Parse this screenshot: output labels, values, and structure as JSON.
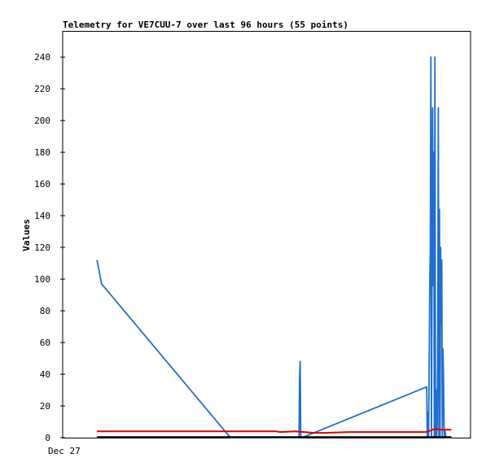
{
  "chart_data": {
    "type": "line",
    "title": "Telemetry for VE7CUU-7 over last 96 hours (55 points)",
    "ylabel": "Values",
    "xlabel": "",
    "x_tick_labels": [
      "Dec 27"
    ],
    "y_tick_labels": [
      "0",
      "20",
      "40",
      "60",
      "80",
      "100",
      "120",
      "140",
      "160",
      "180",
      "200",
      "220",
      "240"
    ],
    "ylim": [
      0,
      256
    ],
    "grid": false,
    "legend": "none",
    "colors": {
      "blue": "#1f6fcf",
      "red": "#dd0000",
      "black": "#000000",
      "axis": "#000000",
      "background": "#ffffff"
    },
    "series": [
      {
        "color": "#1f6fcf",
        "x": [
          0.0,
          1.2,
          35.0,
          35.3,
          35.6,
          53.0,
          53.15,
          53.3,
          53.45,
          53.6,
          53.8,
          86.5,
          86.65,
          86.8,
          87.0,
          87.15,
          87.3,
          87.45,
          87.6,
          87.75,
          87.9,
          88.05,
          88.2,
          88.35,
          88.5,
          88.65,
          88.8,
          88.95,
          89.1,
          89.25,
          89.4,
          89.55,
          89.7,
          89.85,
          90.0,
          90.15,
          90.3,
          90.45,
          90.6,
          90.75,
          90.9,
          91.05,
          91.2,
          91.35,
          91.5,
          91.65,
          91.8,
          91.95,
          92.1,
          92.25,
          92.4,
          92.55,
          92.7,
          92.85,
          93.0
        ],
        "y": [
          112,
          97,
          0,
          0,
          0,
          0,
          37,
          48,
          2,
          0,
          0,
          32,
          0,
          16,
          0,
          48,
          96,
          120,
          240,
          0,
          112,
          208,
          96,
          180,
          0,
          240,
          0,
          30,
          0,
          8,
          64,
          208,
          0,
          144,
          0,
          120,
          72,
          112,
          0,
          56,
          40,
          8,
          0,
          4,
          0,
          0,
          0,
          0,
          0,
          0,
          0,
          0,
          0,
          0,
          0
        ]
      },
      {
        "color": "#dd0000",
        "x": [
          0,
          47,
          48,
          52,
          57,
          60,
          66,
          72,
          78,
          86,
          87,
          88,
          89,
          90,
          93
        ],
        "y": [
          4,
          4,
          3.5,
          4,
          3,
          3,
          3.5,
          3.5,
          3.5,
          3.5,
          4,
          5,
          5.5,
          5,
          5
        ],
        "width": 2
      },
      {
        "color": "#000000",
        "x": [
          0,
          93
        ],
        "y": [
          0.4,
          0.4
        ],
        "width": 2
      }
    ],
    "xlim": [
      -9,
      98
    ]
  }
}
